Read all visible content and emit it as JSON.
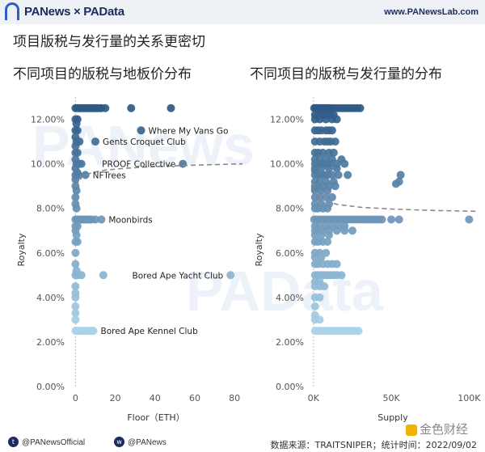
{
  "header": {
    "logo": "PANews × PAData",
    "site": "www.PANewsLab.com"
  },
  "main_title": "项目版税与发行量的关系更密切",
  "watermark": {
    "left": "PANews",
    "right": "PAData"
  },
  "footer": {
    "twitter": "@PANewsOfficial",
    "weibo": "@PANews",
    "source": "数据来源：TRAITSNIPER；统计时间：2022/09/02"
  },
  "stamp": "金色财经",
  "colors": {
    "dark": "#2e5a87",
    "light": "#a8d2e8",
    "trend": "#8a8a8a"
  },
  "chart_data": [
    {
      "type": "scatter",
      "title": "不同项目的版税与地板价分布",
      "xlabel": "Floor（ETH）",
      "ylabel": "Royalty",
      "xlim": [
        -3,
        84
      ],
      "ylim": [
        0,
        13
      ],
      "xticks": [
        0,
        20,
        40,
        60,
        80
      ],
      "xtick_labels": [
        "0",
        "20",
        "40",
        "60",
        "80"
      ],
      "yticks": [
        0,
        2,
        4,
        6,
        8,
        10,
        12
      ],
      "ytick_labels": [
        "0.00%",
        "2.00%",
        "4.00%",
        "6.00%",
        "8.00%",
        "10.00%",
        "12.00%"
      ],
      "points": [
        [
          0,
          12.5
        ],
        [
          1,
          12.5
        ],
        [
          2,
          12.5
        ],
        [
          3,
          12.5
        ],
        [
          4,
          12.5
        ],
        [
          5,
          12.5
        ],
        [
          6,
          12.5
        ],
        [
          7,
          12.5
        ],
        [
          8,
          12.5
        ],
        [
          9,
          12.5
        ],
        [
          10,
          12.5
        ],
        [
          11,
          12.5
        ],
        [
          12,
          12.5
        ],
        [
          13,
          12.5
        ],
        [
          15,
          12.5
        ],
        [
          28,
          12.5
        ],
        [
          48,
          12.5
        ],
        [
          0,
          12
        ],
        [
          1,
          12
        ],
        [
          0.5,
          11.8
        ],
        [
          0,
          11.5
        ],
        [
          1,
          11.5
        ],
        [
          0,
          11.2
        ],
        [
          0.5,
          11
        ],
        [
          2,
          11
        ],
        [
          0,
          10.8
        ],
        [
          0,
          10.5
        ],
        [
          1,
          10.5
        ],
        [
          0,
          10.2
        ],
        [
          0.5,
          10
        ],
        [
          1,
          10
        ],
        [
          2,
          10
        ],
        [
          3,
          10
        ],
        [
          0,
          9.8
        ],
        [
          1,
          9.6
        ],
        [
          0,
          9.5
        ],
        [
          1.5,
          9.5
        ],
        [
          0,
          9.3
        ],
        [
          0,
          9
        ],
        [
          0.5,
          8.8
        ],
        [
          0,
          8.5
        ],
        [
          0,
          8.2
        ],
        [
          0.5,
          8
        ],
        [
          0,
          7.5
        ],
        [
          1,
          7.5
        ],
        [
          2,
          7.5
        ],
        [
          3,
          7.5
        ],
        [
          4,
          7.5
        ],
        [
          5,
          7.5
        ],
        [
          6,
          7.5
        ],
        [
          7,
          7.5
        ],
        [
          8,
          7.5
        ],
        [
          10,
          7.5
        ],
        [
          13,
          7.5
        ],
        [
          0,
          7.2
        ],
        [
          1,
          7.2
        ],
        [
          0,
          7
        ],
        [
          0.5,
          6.8
        ],
        [
          0,
          6.5
        ],
        [
          1,
          6.5
        ],
        [
          0,
          6
        ],
        [
          0,
          5.5
        ],
        [
          0.5,
          5.2
        ],
        [
          0,
          5
        ],
        [
          1,
          5
        ],
        [
          3,
          5
        ],
        [
          14,
          5
        ],
        [
          78,
          5
        ],
        [
          0,
          4.5
        ],
        [
          0,
          4.2
        ],
        [
          0,
          4
        ],
        [
          0,
          3.6
        ],
        [
          0,
          3.3
        ],
        [
          0,
          3
        ],
        [
          0,
          2.5
        ],
        [
          1,
          2.5
        ],
        [
          2,
          2.5
        ],
        [
          3,
          2.5
        ],
        [
          4,
          2.5
        ],
        [
          5,
          2.5
        ],
        [
          6,
          2.5
        ],
        [
          7,
          2.5
        ],
        [
          8,
          2.5
        ],
        [
          9,
          2.5
        ],
        [
          33,
          11.5
        ],
        [
          10,
          11
        ],
        [
          54,
          10
        ],
        [
          5,
          9.5
        ]
      ],
      "trend": [
        [
          0,
          9.0
        ],
        [
          3,
          9.38
        ],
        [
          8,
          9.6
        ],
        [
          15,
          9.72
        ],
        [
          25,
          9.8
        ],
        [
          40,
          9.88
        ],
        [
          60,
          9.94
        ],
        [
          84,
          10.0
        ]
      ],
      "annotations": [
        {
          "text": "Where My Vans Go",
          "x": 33,
          "y": 11.5
        },
        {
          "text": "Gents Croquet Club",
          "x": 10,
          "y": 11
        },
        {
          "text": "NFTrees",
          "x": 5,
          "y": 9.5
        },
        {
          "text": "PROOF Collective",
          "x": 54,
          "y": 10
        },
        {
          "text": "Moonbirds",
          "x": 13,
          "y": 7.5
        },
        {
          "text": "Bored Ape Yacht Club",
          "x": 78,
          "y": 5
        },
        {
          "text": "Bored Ape Kennel Club",
          "x": 9,
          "y": 2.5
        }
      ]
    },
    {
      "type": "scatter",
      "title": "不同项目的版税与发行量的分布",
      "xlabel": "Supply",
      "ylabel": "Royalty",
      "xlim": [
        -3000,
        105000
      ],
      "ylim": [
        0,
        13
      ],
      "xticks": [
        0,
        50000,
        100000
      ],
      "xtick_labels": [
        "0K",
        "50K",
        "100K"
      ],
      "yticks": [
        0,
        2,
        4,
        6,
        8,
        10,
        12
      ],
      "ytick_labels": [
        "0.00%",
        "2.00%",
        "4.00%",
        "6.00%",
        "8.00%",
        "10.00%",
        "12.00%"
      ],
      "points": [
        [
          500,
          12.5
        ],
        [
          1500,
          12.5
        ],
        [
          2500,
          12.5
        ],
        [
          3500,
          12.5
        ],
        [
          4500,
          12.5
        ],
        [
          5500,
          12.5
        ],
        [
          6500,
          12.5
        ],
        [
          7500,
          12.5
        ],
        [
          8500,
          12.5
        ],
        [
          9500,
          12.5
        ],
        [
          10500,
          12.5
        ],
        [
          12000,
          12.5
        ],
        [
          14000,
          12.5
        ],
        [
          16000,
          12.5
        ],
        [
          18000,
          12.5
        ],
        [
          20000,
          12.5
        ],
        [
          22000,
          12.5
        ],
        [
          24000,
          12.5
        ],
        [
          26000,
          12.5
        ],
        [
          28000,
          12.5
        ],
        [
          30000,
          12.5
        ],
        [
          1000,
          12.2
        ],
        [
          3000,
          12.2
        ],
        [
          5000,
          12.2
        ],
        [
          7000,
          12.2
        ],
        [
          9000,
          12.2
        ],
        [
          11000,
          12.2
        ],
        [
          13000,
          12.2
        ],
        [
          1000,
          12
        ],
        [
          4000,
          12
        ],
        [
          8000,
          12
        ],
        [
          12000,
          12
        ],
        [
          15000,
          12
        ],
        [
          1000,
          11.5
        ],
        [
          3000,
          11.5
        ],
        [
          5000,
          11.5
        ],
        [
          8000,
          11.5
        ],
        [
          10000,
          11.5
        ],
        [
          12000,
          11.5
        ],
        [
          1000,
          11
        ],
        [
          4000,
          11
        ],
        [
          7000,
          11
        ],
        [
          9000,
          11
        ],
        [
          11000,
          11
        ],
        [
          14000,
          11
        ],
        [
          1000,
          10.5
        ],
        [
          3000,
          10.5
        ],
        [
          6000,
          10.5
        ],
        [
          10000,
          10.5
        ],
        [
          13000,
          10.5
        ],
        [
          1000,
          10.2
        ],
        [
          4000,
          10.2
        ],
        [
          8000,
          10.2
        ],
        [
          12000,
          10.2
        ],
        [
          18000,
          10.2
        ],
        [
          1000,
          10
        ],
        [
          3000,
          10
        ],
        [
          5000,
          10
        ],
        [
          7000,
          10
        ],
        [
          9000,
          10
        ],
        [
          11000,
          10
        ],
        [
          15000,
          10
        ],
        [
          20000,
          10
        ],
        [
          1000,
          9.8
        ],
        [
          5000,
          9.8
        ],
        [
          10000,
          9.8
        ],
        [
          15000,
          9.8
        ],
        [
          1000,
          9.5
        ],
        [
          3000,
          9.5
        ],
        [
          5000,
          9.5
        ],
        [
          7000,
          9.5
        ],
        [
          9000,
          9.5
        ],
        [
          12000,
          9.5
        ],
        [
          16000,
          9.5
        ],
        [
          22000,
          9.5
        ],
        [
          1000,
          9.2
        ],
        [
          4000,
          9.2
        ],
        [
          8000,
          9.2
        ],
        [
          13000,
          9.2
        ],
        [
          1000,
          9
        ],
        [
          3000,
          9
        ],
        [
          6000,
          9
        ],
        [
          10000,
          9
        ],
        [
          14000,
          9
        ],
        [
          1000,
          8.8
        ],
        [
          5000,
          8.8
        ],
        [
          9000,
          8.8
        ],
        [
          1000,
          8.5
        ],
        [
          4000,
          8.5
        ],
        [
          8000,
          8.5
        ],
        [
          12000,
          8.5
        ],
        [
          1000,
          8.2
        ],
        [
          5000,
          8.2
        ],
        [
          10000,
          8.2
        ],
        [
          1000,
          8
        ],
        [
          3000,
          8
        ],
        [
          6000,
          8
        ],
        [
          9000,
          8
        ],
        [
          500,
          7.5
        ],
        [
          2000,
          7.5
        ],
        [
          4000,
          7.5
        ],
        [
          6000,
          7.5
        ],
        [
          8000,
          7.5
        ],
        [
          10000,
          7.5
        ],
        [
          12000,
          7.5
        ],
        [
          14000,
          7.5
        ],
        [
          16000,
          7.5
        ],
        [
          18000,
          7.5
        ],
        [
          20000,
          7.5
        ],
        [
          22000,
          7.5
        ],
        [
          24000,
          7.5
        ],
        [
          26000,
          7.5
        ],
        [
          28000,
          7.5
        ],
        [
          30000,
          7.5
        ],
        [
          32000,
          7.5
        ],
        [
          34000,
          7.5
        ],
        [
          36000,
          7.5
        ],
        [
          38000,
          7.5
        ],
        [
          40000,
          7.5
        ],
        [
          42000,
          7.5
        ],
        [
          44000,
          7.5
        ],
        [
          50000,
          7.5
        ],
        [
          55000,
          7.5
        ],
        [
          100000,
          7.5
        ],
        [
          1000,
          7.2
        ],
        [
          4000,
          7.2
        ],
        [
          8000,
          7.2
        ],
        [
          12000,
          7.2
        ],
        [
          16000,
          7.2
        ],
        [
          20000,
          7.2
        ],
        [
          1000,
          7
        ],
        [
          3000,
          7
        ],
        [
          6000,
          7
        ],
        [
          10000,
          7
        ],
        [
          15000,
          7
        ],
        [
          20000,
          7
        ],
        [
          25000,
          7
        ],
        [
          1000,
          6.8
        ],
        [
          5000,
          6.8
        ],
        [
          10000,
          6.8
        ],
        [
          1000,
          6.5
        ],
        [
          3000,
          6.5
        ],
        [
          6000,
          6.5
        ],
        [
          9000,
          6.5
        ],
        [
          1000,
          6
        ],
        [
          4000,
          6
        ],
        [
          8000,
          6
        ],
        [
          1000,
          5.8
        ],
        [
          5000,
          5.8
        ],
        [
          1000,
          5.5
        ],
        [
          3000,
          5.5
        ],
        [
          6000,
          5.5
        ],
        [
          9000,
          5.5
        ],
        [
          12000,
          5.5
        ],
        [
          15000,
          5.5
        ],
        [
          1000,
          5
        ],
        [
          3000,
          5
        ],
        [
          5000,
          5
        ],
        [
          7000,
          5
        ],
        [
          9000,
          5
        ],
        [
          11000,
          5
        ],
        [
          13000,
          5
        ],
        [
          15000,
          5
        ],
        [
          18000,
          5
        ],
        [
          1000,
          4.7
        ],
        [
          4000,
          4.7
        ],
        [
          1000,
          4.5
        ],
        [
          4000,
          4.5
        ],
        [
          7000,
          4.5
        ],
        [
          1000,
          4
        ],
        [
          4000,
          4
        ],
        [
          1000,
          3.6
        ],
        [
          1000,
          3.2
        ],
        [
          1000,
          3
        ],
        [
          4000,
          3
        ],
        [
          1000,
          2.5
        ],
        [
          3000,
          2.5
        ],
        [
          5000,
          2.5
        ],
        [
          7000,
          2.5
        ],
        [
          9000,
          2.5
        ],
        [
          11000,
          2.5
        ],
        [
          13000,
          2.5
        ],
        [
          15000,
          2.5
        ],
        [
          17000,
          2.5
        ],
        [
          19000,
          2.5
        ],
        [
          21000,
          2.5
        ],
        [
          23000,
          2.5
        ],
        [
          25000,
          2.5
        ],
        [
          27000,
          2.5
        ],
        [
          29000,
          2.5
        ],
        [
          1000,
          8.9
        ],
        [
          1000,
          9.7
        ],
        [
          55000,
          9.2
        ],
        [
          56000,
          9.5
        ],
        [
          53000,
          9.1
        ]
      ],
      "trend": [
        [
          0,
          9.15
        ],
        [
          1000,
          8.75
        ],
        [
          3000,
          8.5
        ],
        [
          7000,
          8.33
        ],
        [
          15000,
          8.18
        ],
        [
          30000,
          8.05
        ],
        [
          50000,
          7.97
        ],
        [
          75000,
          7.91
        ],
        [
          105000,
          7.87
        ]
      ],
      "annotations": []
    }
  ]
}
